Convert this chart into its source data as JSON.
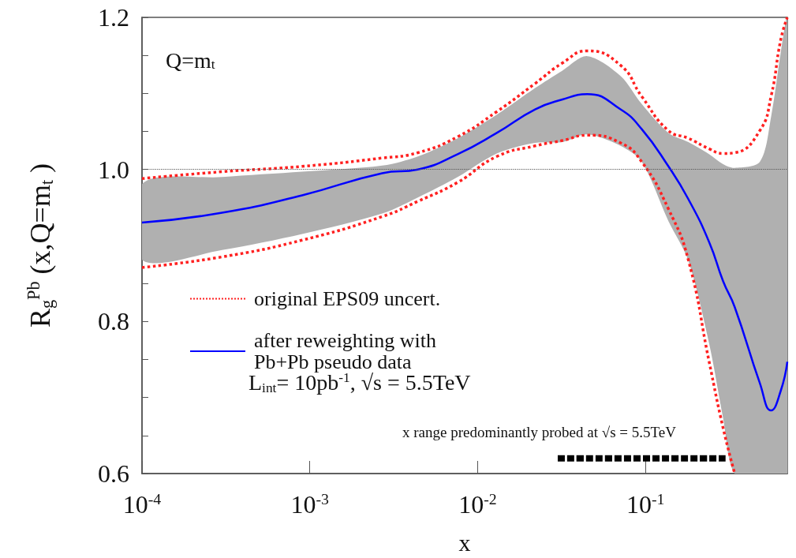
{
  "chart_data": {
    "type": "line",
    "xlabel": "x",
    "ylabel": "R$_{g}$$^{Pb}$ (x,Q=m$_{t}$ )",
    "x": [
      0.0001,
      0.0003,
      0.0009,
      0.0027,
      0.0044,
      0.0076,
      0.013,
      0.022,
      0.032,
      0.045,
      0.071,
      0.095,
      0.137,
      0.18,
      0.24,
      0.29,
      0.34,
      0.48,
      0.56,
      0.64,
      0.7
    ],
    "series": [
      {
        "name": "original EPS09 uncert.",
        "color": "#ff2020",
        "line_style": "dotted",
        "values": [
          0.988,
          0.997,
          1.004,
          1.015,
          1.022,
          1.043,
          1.076,
          1.113,
          1.14,
          1.156,
          1.137,
          1.096,
          1.051,
          1.041,
          1.027,
          1.021,
          1.022,
          1.051,
          1.096,
          1.171,
          1.2
        ]
      },
      {
        "color": "#ff2020",
        "line_style": "dotted",
        "values": [
          0.871,
          0.885,
          0.907,
          0.938,
          0.958,
          0.983,
          1.017,
          1.031,
          1.038,
          1.045,
          1.035,
          1.01,
          0.948,
          0.881,
          0.746,
          0.66,
          0.6,
          null,
          null,
          null,
          null
        ]
      },
      {
        "name": "after reweighting with\nPb+Pb pseudo data",
        "color": "#0000ff",
        "line_style": "solid",
        "values": [
          0.93,
          0.943,
          0.966,
          0.995,
          1.0,
          1.02,
          1.048,
          1.079,
          1.092,
          1.099,
          1.079,
          1.053,
          1.004,
          0.961,
          0.904,
          0.853,
          0.819,
          0.719,
          0.683,
          0.709,
          0.747
        ],
        "lower": [
          0.881,
          0.894,
          0.915,
          0.942,
          0.963,
          0.99,
          1.021,
          1.035,
          1.036,
          1.046,
          1.031,
          1.01,
          0.932,
          0.88,
          0.77,
          0.673,
          0.6,
          0.6,
          0.6,
          0.6,
          0.6
        ],
        "upper": [
          0.981,
          0.99,
          0.997,
          1.005,
          1.017,
          1.041,
          1.072,
          1.107,
          1.13,
          1.149,
          1.123,
          1.086,
          1.048,
          1.036,
          1.02,
          1.007,
          1.002,
          1.01,
          1.069,
          1.154,
          1.2
        ]
      },
      {
        "color": "#000000",
        "line_style": "dashed",
        "x": [
          0.03,
          0.3
        ],
        "values": [
          0.62,
          0.62
        ]
      }
    ],
    "log": "x",
    "xlim": [
      0.0001,
      0.7
    ],
    "xticks": [
      {
        "value": 0.0001,
        "label": "10$^{-4}$"
      },
      {
        "value": 0.001,
        "label": "10$^{-3}$"
      },
      {
        "value": 0.01,
        "label": "10$^{-2}$"
      },
      {
        "value": 0.1,
        "label": "10$^{-1}$"
      }
    ],
    "ylim": [
      0.6,
      1.2
    ],
    "yticks": [
      0.6,
      {
        "value": 0.65,
        "label": null
      },
      {
        "value": 0.7,
        "label": null
      },
      {
        "value": 0.75,
        "label": null
      },
      0.8,
      {
        "value": 0.85,
        "label": null
      },
      {
        "value": 0.9,
        "label": null
      },
      {
        "value": 0.95,
        "label": null
      },
      {
        "value": 1,
        "label": "1.0"
      },
      {
        "value": 1.05,
        "label": null
      },
      {
        "value": 1.1,
        "label": null
      },
      {
        "value": 1.15,
        "label": null
      },
      1.2
    ],
    "ref_lines": [
      {
        "axis": "y",
        "value": 1,
        "color": "#555555",
        "line_style": "dotted"
      }
    ],
    "annotations": [
      "Q=m$_{t}$",
      "L$_{int}$= 10pb$^{-1}$, √s = 5.5TeV",
      "x range predominantly probed at √s = 5.5TeV"
    ],
    "legend": "bottom left",
    "marker": "none",
    "grid": false
  }
}
